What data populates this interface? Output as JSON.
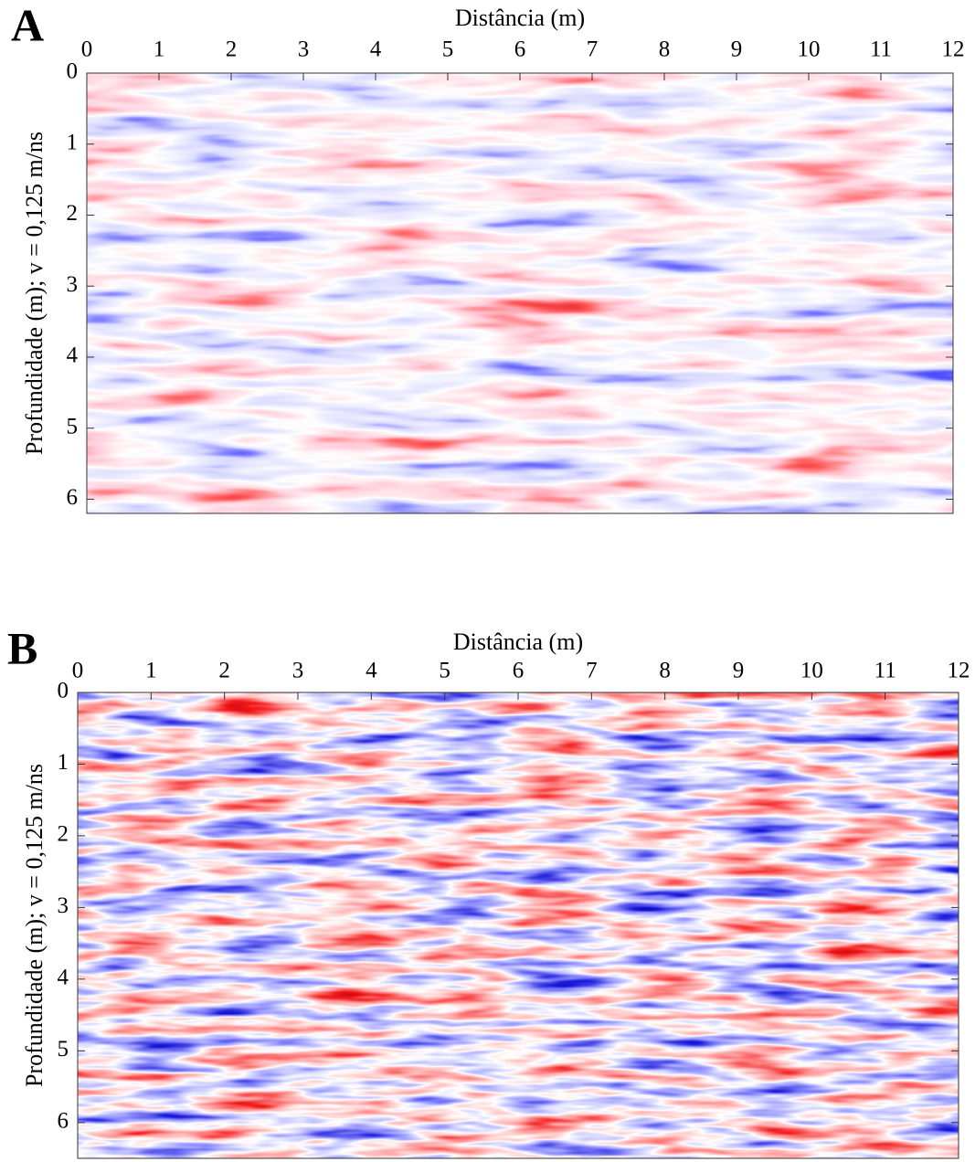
{
  "chart_data": [
    {
      "type": "radargram",
      "panel_label": "A",
      "title": "Distância (m)",
      "ylabel": "Profundidade (m); v = 0,125 m/ns",
      "xlim": [
        0,
        12
      ],
      "xticks": [
        0,
        1,
        2,
        3,
        4,
        5,
        6,
        7,
        8,
        9,
        10,
        11,
        12
      ],
      "ylim": [
        0,
        6.2
      ],
      "yticks": [
        0,
        1,
        2,
        3,
        4,
        5,
        6
      ]
    },
    {
      "type": "radargram",
      "panel_label": "B",
      "title": "Distância (m)",
      "ylabel": "Profundidade (m); v = 0,125 m/ns",
      "xlim": [
        0,
        12
      ],
      "xticks": [
        0,
        1,
        2,
        3,
        4,
        5,
        6,
        7,
        8,
        9,
        10,
        11,
        12
      ],
      "ylim": [
        0,
        6.5
      ],
      "yticks": [
        0,
        1,
        2,
        3,
        4,
        5,
        6
      ]
    }
  ]
}
